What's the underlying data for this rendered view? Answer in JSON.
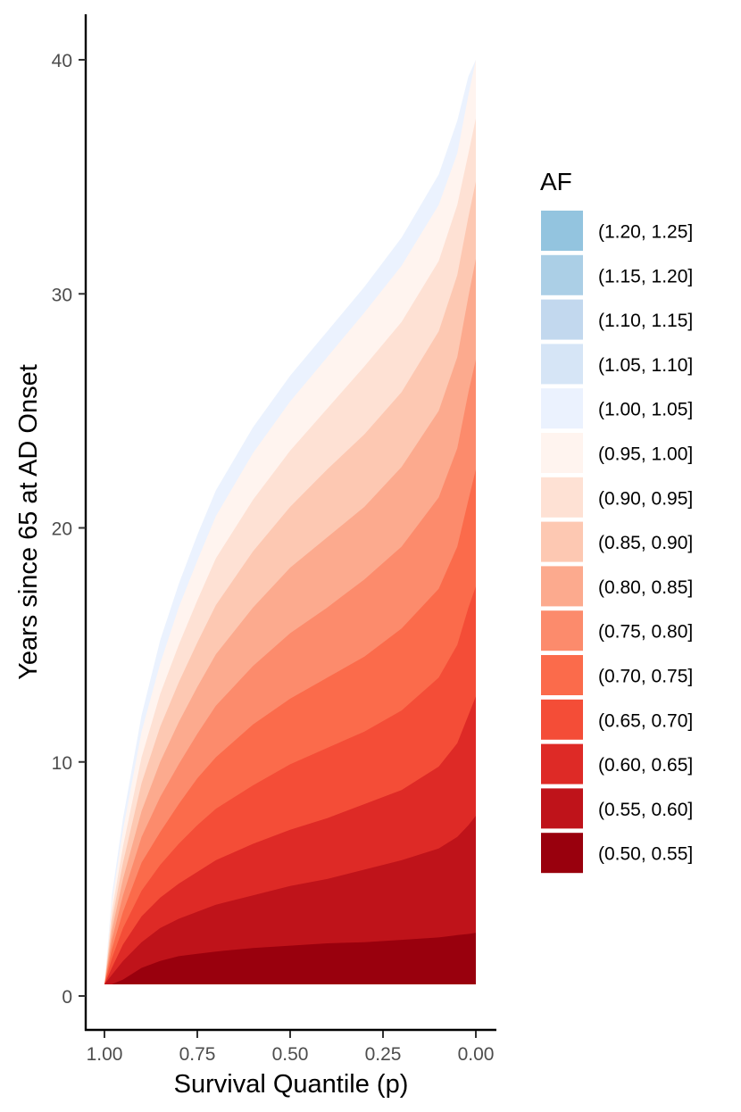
{
  "chart_data": {
    "type": "area",
    "title": "",
    "xlabel": "Survival Quantile (p)",
    "ylabel": "Years since 65 at AD Onset",
    "xlim": [
      1.0,
      0.0
    ],
    "x_reversed": true,
    "ylim": [
      0,
      40
    ],
    "x_ticks": [
      1.0,
      0.75,
      0.5,
      0.25,
      0.0
    ],
    "x_tick_labels": [
      "1.00",
      "0.75",
      "0.50",
      "0.25",
      "0.00"
    ],
    "y_ticks": [
      0,
      10,
      20,
      30,
      40
    ],
    "y_tick_labels": [
      "0",
      "10",
      "20",
      "30",
      "40"
    ],
    "grid": false,
    "legend_title": "AF",
    "legend_position": "right",
    "x": [
      0.98,
      0.95,
      0.9,
      0.85,
      0.8,
      0.75,
      0.7,
      0.6,
      0.5,
      0.4,
      0.3,
      0.2,
      0.1,
      0.05,
      0.02,
      0.0
    ],
    "y_floor": 0.5,
    "series": [
      {
        "name": "(0.50, 0.55]",
        "color": "#99000d",
        "upper": [
          0.5,
          0.7,
          1.2,
          1.5,
          1.7,
          1.8,
          1.9,
          2.05,
          2.15,
          2.25,
          2.3,
          2.4,
          2.5,
          2.6,
          2.65,
          2.7
        ]
      },
      {
        "name": "(0.55, 0.60]",
        "color": "#bf131a",
        "upper": [
          0.9,
          1.5,
          2.3,
          2.9,
          3.3,
          3.6,
          3.9,
          4.3,
          4.7,
          5.0,
          5.4,
          5.8,
          6.3,
          6.8,
          7.3,
          7.7
        ]
      },
      {
        "name": "(0.60, 0.65]",
        "color": "#de2a26",
        "upper": [
          1.2,
          2.2,
          3.4,
          4.2,
          4.8,
          5.3,
          5.8,
          6.5,
          7.1,
          7.6,
          8.2,
          8.8,
          9.8,
          10.8,
          12.0,
          12.8
        ]
      },
      {
        "name": "(0.65, 0.70]",
        "color": "#f44d37",
        "upper": [
          1.6,
          2.9,
          4.5,
          5.6,
          6.5,
          7.3,
          8.0,
          9.0,
          9.9,
          10.6,
          11.3,
          12.2,
          13.6,
          15.0,
          16.6,
          17.5
        ]
      },
      {
        "name": "(0.70, 0.75]",
        "color": "#fb6b4b",
        "upper": [
          2.0,
          3.6,
          5.7,
          7.0,
          8.2,
          9.3,
          10.2,
          11.6,
          12.7,
          13.6,
          14.5,
          15.7,
          17.4,
          19.2,
          21.2,
          22.5
        ]
      },
      {
        "name": "(0.75, 0.80]",
        "color": "#fc8b6c",
        "upper": [
          2.4,
          4.3,
          6.8,
          8.5,
          9.9,
          11.2,
          12.4,
          14.1,
          15.5,
          16.6,
          17.8,
          19.2,
          21.3,
          23.4,
          25.8,
          27.2
        ]
      },
      {
        "name": "(0.80, 0.85]",
        "color": "#fcaa8e",
        "upper": [
          2.8,
          5.0,
          7.9,
          10.0,
          11.7,
          13.2,
          14.6,
          16.6,
          18.3,
          19.6,
          20.9,
          22.6,
          25.0,
          27.3,
          29.9,
          31.5
        ]
      },
      {
        "name": "(0.85, 0.90]",
        "color": "#fdc8b2",
        "upper": [
          3.2,
          5.7,
          9.1,
          11.5,
          13.4,
          15.1,
          16.7,
          19.0,
          20.9,
          22.5,
          24.0,
          25.8,
          28.4,
          30.8,
          33.3,
          34.8
        ]
      },
      {
        "name": "(0.90, 0.95]",
        "color": "#fee1d4",
        "upper": [
          3.6,
          6.4,
          10.2,
          12.9,
          15.0,
          16.9,
          18.7,
          21.2,
          23.3,
          25.1,
          26.9,
          28.8,
          31.4,
          33.8,
          36.0,
          37.5
        ]
      },
      {
        "name": "(0.95, 1.00]",
        "color": "#fff4ef",
        "upper": [
          4.0,
          7.1,
          11.3,
          14.2,
          16.6,
          18.6,
          20.5,
          23.2,
          25.4,
          27.3,
          29.2,
          31.2,
          33.8,
          36.0,
          38.5,
          40.0
        ]
      },
      {
        "name": "(1.00, 1.05]",
        "color": "#ebf2fe",
        "upper": [
          4.3,
          7.6,
          12.0,
          15.2,
          17.6,
          19.7,
          21.6,
          24.3,
          26.5,
          28.4,
          30.3,
          32.4,
          35.1,
          37.4,
          39.3,
          40.0
        ]
      },
      {
        "name": "(1.05, 1.10]",
        "color": "#d6e5f6",
        "upper": null
      },
      {
        "name": "(1.10, 1.15]",
        "color": "#c2d8ee",
        "upper": null
      },
      {
        "name": "(1.15, 1.20]",
        "color": "#abcfe6",
        "upper": null
      },
      {
        "name": "(1.20, 1.25]",
        "color": "#93c4df",
        "upper": null
      }
    ]
  }
}
